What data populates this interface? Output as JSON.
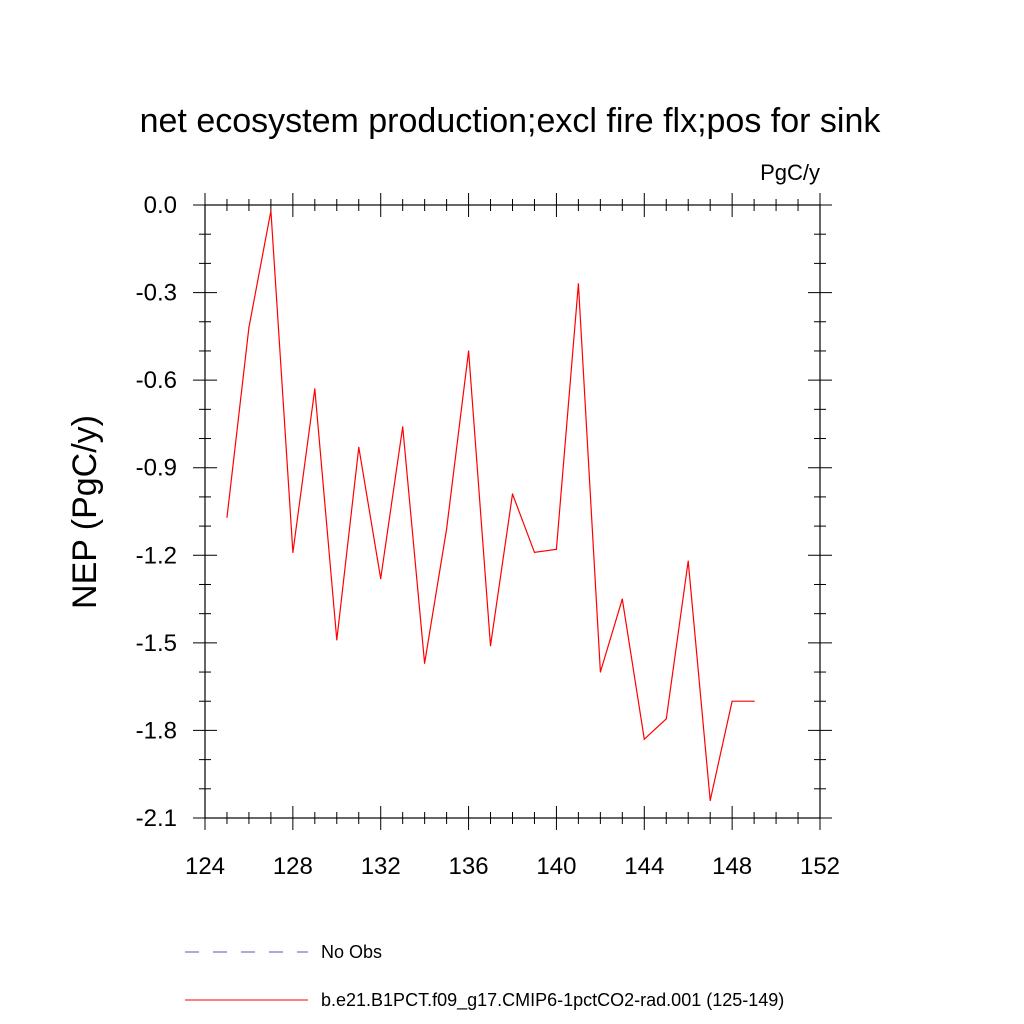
{
  "chart_data": {
    "type": "line",
    "title": "net ecosystem production;excl fire flx;pos for sink",
    "units_label": "PgC/y",
    "ylabel": "NEP  (PgC/y)",
    "xlabel": "",
    "xlim": [
      124,
      152
    ],
    "ylim": [
      -2.1,
      0.0
    ],
    "xticks": [
      124,
      128,
      132,
      136,
      140,
      144,
      148,
      152
    ],
    "xtick_labels": [
      "124",
      "128",
      "132",
      "136",
      "140",
      "144",
      "148",
      "152"
    ],
    "yticks": [
      0.0,
      -0.3,
      -0.6,
      -0.9,
      -1.2,
      -1.5,
      -1.8,
      -2.1
    ],
    "ytick_labels": [
      "0.0",
      "-0.3",
      "-0.6",
      "-0.9",
      "-1.2",
      "-1.5",
      "-1.8",
      "-2.1"
    ],
    "y_minor_step": 0.1,
    "x_minor_step": 1,
    "grid": false,
    "legend_position": "bottom",
    "series": [
      {
        "name": "b.e21.B1PCT.f09_g17.CMIP6-1pctCO2-rad.001 (125-149)",
        "color": "#ff0000",
        "dash": "solid",
        "x": [
          125,
          126,
          127,
          128,
          129,
          130,
          131,
          132,
          133,
          134,
          135,
          136,
          137,
          138,
          139,
          140,
          141,
          142,
          143,
          144,
          145,
          146,
          147,
          148,
          149
        ],
        "values": [
          -1.07,
          -0.42,
          -0.02,
          -1.19,
          -0.63,
          -1.49,
          -0.83,
          -1.28,
          -0.76,
          -1.57,
          -1.11,
          -0.5,
          -1.51,
          -0.99,
          -1.19,
          -1.18,
          -0.27,
          -1.6,
          -1.35,
          -1.83,
          -1.76,
          -1.22,
          -2.04,
          -1.7,
          -1.7
        ]
      }
    ],
    "legend": [
      {
        "label": "No Obs",
        "color": "#5a5ab4",
        "dash": "dashed"
      },
      {
        "label": "b.e21.B1PCT.f09_g17.CMIP6-1pctCO2-rad.001 (125-149)",
        "color": "#ff0000",
        "dash": "solid"
      }
    ]
  }
}
